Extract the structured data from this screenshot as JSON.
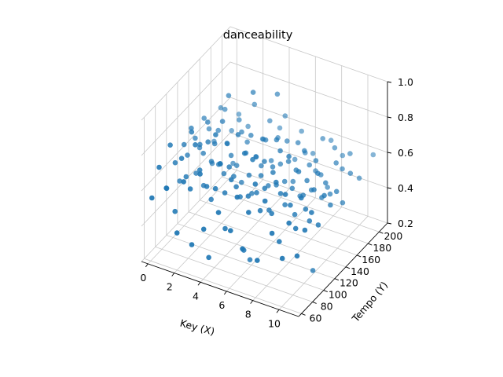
{
  "chart_data": {
    "type": "scatter3d",
    "title": "danceability",
    "xlabel": "Key (X)",
    "ylabel": "Tempo (Y)",
    "zlabel": "",
    "x_ticks": [
      "0",
      "2",
      "4",
      "6",
      "8",
      "10"
    ],
    "y_ticks": [
      "60",
      "80",
      "100",
      "120",
      "140",
      "160",
      "180",
      "200"
    ],
    "z_ticks": [
      "0.2",
      "0.4",
      "0.6",
      "0.8",
      "1.0"
    ],
    "xlim": [
      -0.5,
      11.5
    ],
    "ylim": [
      55,
      215
    ],
    "zlim": [
      0.2,
      1.0
    ],
    "marker_color": "#1f77b4",
    "pane_colors": [
      "#f2f2f2",
      "#ebebeb",
      "#e6e6e6"
    ],
    "grid": true,
    "points": [
      {
        "x": 0,
        "y": 62,
        "z": 0.55
      },
      {
        "x": 0,
        "y": 75,
        "z": 0.68
      },
      {
        "x": 0,
        "y": 88,
        "z": 0.52
      },
      {
        "x": 0,
        "y": 95,
        "z": 0.74
      },
      {
        "x": 0,
        "y": 104,
        "z": 0.61
      },
      {
        "x": 0,
        "y": 112,
        "z": 0.48
      },
      {
        "x": 0,
        "y": 120,
        "z": 0.66
      },
      {
        "x": 0,
        "y": 126,
        "z": 0.58
      },
      {
        "x": 0,
        "y": 133,
        "z": 0.71
      },
      {
        "x": 0,
        "y": 140,
        "z": 0.63
      },
      {
        "x": 0,
        "y": 148,
        "z": 0.55
      },
      {
        "x": 0,
        "y": 156,
        "z": 0.69
      },
      {
        "x": 0,
        "y": 165,
        "z": 0.6
      },
      {
        "x": 0,
        "y": 174,
        "z": 0.5
      },
      {
        "x": 0,
        "y": 186,
        "z": 0.65
      },
      {
        "x": 1,
        "y": 65,
        "z": 0.62
      },
      {
        "x": 1,
        "y": 80,
        "z": 0.44
      },
      {
        "x": 1,
        "y": 92,
        "z": 0.7
      },
      {
        "x": 1,
        "y": 100,
        "z": 0.57
      },
      {
        "x": 1,
        "y": 110,
        "z": 0.79
      },
      {
        "x": 1,
        "y": 118,
        "z": 0.53
      },
      {
        "x": 1,
        "y": 125,
        "z": 0.67
      },
      {
        "x": 1,
        "y": 131,
        "z": 0.6
      },
      {
        "x": 1,
        "y": 139,
        "z": 0.75
      },
      {
        "x": 1,
        "y": 147,
        "z": 0.49
      },
      {
        "x": 1,
        "y": 158,
        "z": 0.64
      },
      {
        "x": 1,
        "y": 170,
        "z": 0.72
      },
      {
        "x": 1,
        "y": 182,
        "z": 0.56
      },
      {
        "x": 1,
        "y": 195,
        "z": 0.61
      },
      {
        "x": 2,
        "y": 60,
        "z": 0.41
      },
      {
        "x": 2,
        "y": 72,
        "z": 0.66
      },
      {
        "x": 2,
        "y": 84,
        "z": 0.58
      },
      {
        "x": 2,
        "y": 93,
        "z": 0.8
      },
      {
        "x": 2,
        "y": 101,
        "z": 0.63
      },
      {
        "x": 2,
        "y": 108,
        "z": 0.52
      },
      {
        "x": 2,
        "y": 116,
        "z": 0.74
      },
      {
        "x": 2,
        "y": 122,
        "z": 0.61
      },
      {
        "x": 2,
        "y": 128,
        "z": 0.69
      },
      {
        "x": 2,
        "y": 135,
        "z": 0.55
      },
      {
        "x": 2,
        "y": 142,
        "z": 0.77
      },
      {
        "x": 2,
        "y": 150,
        "z": 0.62
      },
      {
        "x": 2,
        "y": 161,
        "z": 0.47
      },
      {
        "x": 2,
        "y": 172,
        "z": 0.68
      },
      {
        "x": 2,
        "y": 188,
        "z": 0.59
      },
      {
        "x": 3,
        "y": 63,
        "z": 0.36
      },
      {
        "x": 3,
        "y": 78,
        "z": 0.71
      },
      {
        "x": 3,
        "y": 90,
        "z": 0.6
      },
      {
        "x": 3,
        "y": 98,
        "z": 0.5
      },
      {
        "x": 3,
        "y": 106,
        "z": 0.84
      },
      {
        "x": 3,
        "y": 114,
        "z": 0.65
      },
      {
        "x": 3,
        "y": 121,
        "z": 0.57
      },
      {
        "x": 3,
        "y": 127,
        "z": 0.72
      },
      {
        "x": 3,
        "y": 134,
        "z": 0.63
      },
      {
        "x": 3,
        "y": 144,
        "z": 0.54
      },
      {
        "x": 3,
        "y": 153,
        "z": 0.7
      },
      {
        "x": 3,
        "y": 163,
        "z": 0.61
      },
      {
        "x": 3,
        "y": 176,
        "z": 0.78
      },
      {
        "x": 3,
        "y": 192,
        "z": 0.53
      },
      {
        "x": 4,
        "y": 61,
        "z": 0.48
      },
      {
        "x": 4,
        "y": 70,
        "z": 0.29
      },
      {
        "x": 4,
        "y": 82,
        "z": 0.64
      },
      {
        "x": 4,
        "y": 91,
        "z": 0.75
      },
      {
        "x": 4,
        "y": 99,
        "z": 0.56
      },
      {
        "x": 4,
        "y": 107,
        "z": 0.68
      },
      {
        "x": 4,
        "y": 115,
        "z": 0.6
      },
      {
        "x": 4,
        "y": 123,
        "z": 0.81
      },
      {
        "x": 4,
        "y": 129,
        "z": 0.52
      },
      {
        "x": 4,
        "y": 137,
        "z": 0.66
      },
      {
        "x": 4,
        "y": 146,
        "z": 0.73
      },
      {
        "x": 4,
        "y": 155,
        "z": 0.58
      },
      {
        "x": 4,
        "y": 167,
        "z": 0.64
      },
      {
        "x": 4,
        "y": 180,
        "z": 0.7
      },
      {
        "x": 4,
        "y": 198,
        "z": 0.6
      },
      {
        "x": 5,
        "y": 64,
        "z": 0.59
      },
      {
        "x": 5,
        "y": 76,
        "z": 0.46
      },
      {
        "x": 5,
        "y": 87,
        "z": 0.7
      },
      {
        "x": 5,
        "y": 96,
        "z": 0.63
      },
      {
        "x": 5,
        "y": 103,
        "z": 0.55
      },
      {
        "x": 5,
        "y": 111,
        "z": 0.77
      },
      {
        "x": 5,
        "y": 119,
        "z": 0.62
      },
      {
        "x": 5,
        "y": 124,
        "z": 0.5
      },
      {
        "x": 5,
        "y": 132,
        "z": 0.68
      },
      {
        "x": 5,
        "y": 141,
        "z": 0.6
      },
      {
        "x": 5,
        "y": 149,
        "z": 0.72
      },
      {
        "x": 5,
        "y": 159,
        "z": 0.57
      },
      {
        "x": 5,
        "y": 171,
        "z": 0.66
      },
      {
        "x": 5,
        "y": 184,
        "z": 0.74
      },
      {
        "x": 6,
        "y": 62,
        "z": 0.52
      },
      {
        "x": 6,
        "y": 74,
        "z": 0.67
      },
      {
        "x": 6,
        "y": 86,
        "z": 0.33
      },
      {
        "x": 6,
        "y": 94,
        "z": 0.61
      },
      {
        "x": 6,
        "y": 102,
        "z": 0.79
      },
      {
        "x": 6,
        "y": 109,
        "z": 0.58
      },
      {
        "x": 6,
        "y": 117,
        "z": 0.65
      },
      {
        "x": 6,
        "y": 123,
        "z": 0.71
      },
      {
        "x": 6,
        "y": 130,
        "z": 0.55
      },
      {
        "x": 6,
        "y": 138,
        "z": 0.63
      },
      {
        "x": 6,
        "y": 145,
        "z": 0.76
      },
      {
        "x": 6,
        "y": 152,
        "z": 0.6
      },
      {
        "x": 6,
        "y": 164,
        "z": 0.69
      },
      {
        "x": 6,
        "y": 178,
        "z": 0.54
      },
      {
        "x": 6,
        "y": 190,
        "z": 0.66
      },
      {
        "x": 7,
        "y": 60,
        "z": 0.45
      },
      {
        "x": 7,
        "y": 71,
        "z": 0.62
      },
      {
        "x": 7,
        "y": 83,
        "z": 0.74
      },
      {
        "x": 7,
        "y": 92,
        "z": 0.56
      },
      {
        "x": 7,
        "y": 100,
        "z": 0.66
      },
      {
        "x": 7,
        "y": 108,
        "z": 0.51
      },
      {
        "x": 7,
        "y": 115,
        "z": 0.7
      },
      {
        "x": 7,
        "y": 121,
        "z": 0.61
      },
      {
        "x": 7,
        "y": 128,
        "z": 0.78
      },
      {
        "x": 7,
        "y": 136,
        "z": 0.58
      },
      {
        "x": 7,
        "y": 143,
        "z": 0.67
      },
      {
        "x": 7,
        "y": 151,
        "z": 0.53
      },
      {
        "x": 7,
        "y": 160,
        "z": 0.72
      },
      {
        "x": 7,
        "y": 173,
        "z": 0.62
      },
      {
        "x": 7,
        "y": 187,
        "z": 0.57
      },
      {
        "x": 8,
        "y": 63,
        "z": 0.4
      },
      {
        "x": 8,
        "y": 77,
        "z": 0.69
      },
      {
        "x": 8,
        "y": 89,
        "z": 0.58
      },
      {
        "x": 8,
        "y": 97,
        "z": 0.73
      },
      {
        "x": 8,
        "y": 105,
        "z": 0.64
      },
      {
        "x": 8,
        "y": 113,
        "z": 0.55
      },
      {
        "x": 8,
        "y": 120,
        "z": 0.8
      },
      {
        "x": 8,
        "y": 126,
        "z": 0.6
      },
      {
        "x": 8,
        "y": 133,
        "z": 0.68
      },
      {
        "x": 8,
        "y": 140,
        "z": 0.51
      },
      {
        "x": 8,
        "y": 148,
        "z": 0.74
      },
      {
        "x": 8,
        "y": 157,
        "z": 0.63
      },
      {
        "x": 8,
        "y": 168,
        "z": 0.56
      },
      {
        "x": 8,
        "y": 181,
        "z": 0.7
      },
      {
        "x": 8,
        "y": 196,
        "z": 0.64
      },
      {
        "x": 9,
        "y": 66,
        "z": 0.57
      },
      {
        "x": 9,
        "y": 79,
        "z": 0.48
      },
      {
        "x": 9,
        "y": 90,
        "z": 0.71
      },
      {
        "x": 9,
        "y": 99,
        "z": 0.62
      },
      {
        "x": 9,
        "y": 107,
        "z": 0.54
      },
      {
        "x": 9,
        "y": 114,
        "z": 0.76
      },
      {
        "x": 9,
        "y": 122,
        "z": 0.6
      },
      {
        "x": 9,
        "y": 129,
        "z": 0.66
      },
      {
        "x": 9,
        "y": 137,
        "z": 0.58
      },
      {
        "x": 9,
        "y": 145,
        "z": 0.72
      },
      {
        "x": 9,
        "y": 154,
        "z": 0.61
      },
      {
        "x": 9,
        "y": 166,
        "z": 0.5
      },
      {
        "x": 9,
        "y": 179,
        "z": 0.68
      },
      {
        "x": 9,
        "y": 193,
        "z": 0.59
      },
      {
        "x": 10,
        "y": 61,
        "z": 0.47
      },
      {
        "x": 10,
        "y": 73,
        "z": 0.63
      },
      {
        "x": 10,
        "y": 85,
        "z": 0.56
      },
      {
        "x": 10,
        "y": 95,
        "z": 0.7
      },
      {
        "x": 10,
        "y": 103,
        "z": 0.61
      },
      {
        "x": 10,
        "y": 110,
        "z": 0.52
      },
      {
        "x": 10,
        "y": 118,
        "z": 0.67
      },
      {
        "x": 10,
        "y": 125,
        "z": 0.74
      },
      {
        "x": 10,
        "y": 132,
        "z": 0.58
      },
      {
        "x": 10,
        "y": 139,
        "z": 0.64
      },
      {
        "x": 10,
        "y": 147,
        "z": 0.55
      },
      {
        "x": 10,
        "y": 158,
        "z": 0.69
      },
      {
        "x": 10,
        "y": 169,
        "z": 0.62
      },
      {
        "x": 10,
        "y": 183,
        "z": 0.66
      },
      {
        "x": 11,
        "y": 64,
        "z": 0.5
      },
      {
        "x": 11,
        "y": 78,
        "z": 0.6
      },
      {
        "x": 11,
        "y": 90,
        "z": 0.66
      },
      {
        "x": 11,
        "y": 102,
        "z": 0.55
      },
      {
        "x": 11,
        "y": 113,
        "z": 0.68
      },
      {
        "x": 11,
        "y": 124,
        "z": 0.59
      },
      {
        "x": 11,
        "y": 135,
        "z": 0.63
      },
      {
        "x": 11,
        "y": 146,
        "z": 0.53
      },
      {
        "x": 11,
        "y": 160,
        "z": 0.65
      },
      {
        "x": 11,
        "y": 176,
        "z": 0.57
      },
      {
        "x": 11,
        "y": 201,
        "z": 0.62
      },
      {
        "x": 4,
        "y": 150,
        "z": 0.96
      },
      {
        "x": 5,
        "y": 170,
        "z": 0.91
      },
      {
        "x": 10,
        "y": 116,
        "z": 0.22
      },
      {
        "x": 6,
        "y": 97,
        "z": 0.24
      },
      {
        "x": 2,
        "y": 153,
        "z": 0.88
      }
    ]
  }
}
